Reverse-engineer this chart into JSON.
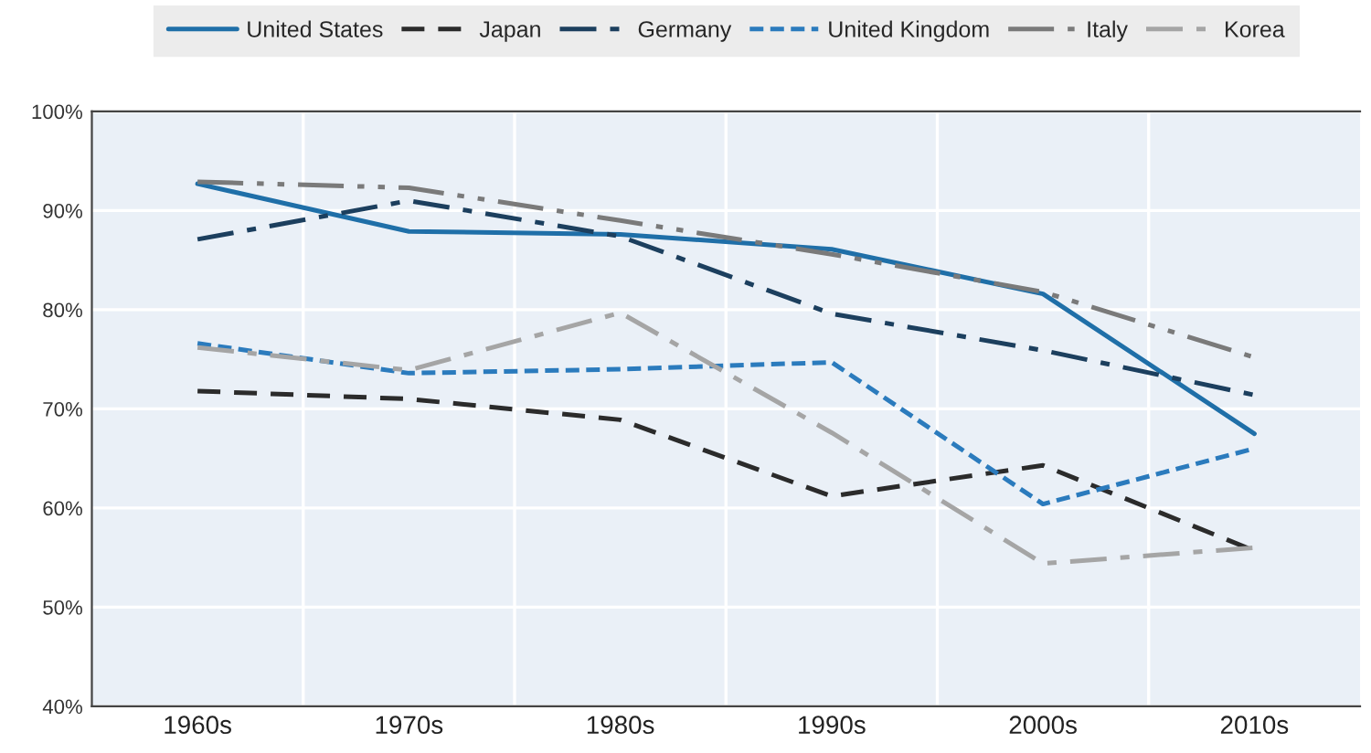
{
  "chart_data": {
    "type": "line",
    "categories": [
      "1960s",
      "1970s",
      "1980s",
      "1990s",
      "2000s",
      "2010s"
    ],
    "series": [
      {
        "name": "United States",
        "color": "#1f6fa8",
        "line_style": "solid",
        "values": [
          92.7,
          87.9,
          87.6,
          86.1,
          81.6,
          67.5
        ]
      },
      {
        "name": "Japan",
        "color": "#2b2b2b",
        "line_style": "dashed",
        "values": [
          71.8,
          71.0,
          68.9,
          61.2,
          64.3,
          55.7
        ]
      },
      {
        "name": "Germany",
        "color": "#1c3f5e",
        "line_style": "dashdot",
        "values": [
          87.1,
          91.0,
          87.4,
          79.6,
          75.9,
          71.4
        ]
      },
      {
        "name": "United Kingdom",
        "color": "#2b7bbd",
        "line_style": "shortdash",
        "values": [
          76.6,
          73.6,
          74.0,
          74.7,
          60.4,
          66.0
        ]
      },
      {
        "name": "Italy",
        "color": "#7a7a7a",
        "line_style": "dashdotdot",
        "values": [
          92.9,
          92.3,
          89.0,
          85.6,
          81.8,
          75.2
        ]
      },
      {
        "name": "Korea",
        "color": "#a5a5a5",
        "line_style": "dashdot",
        "values": [
          76.2,
          73.9,
          79.7,
          67.6,
          54.4,
          56.0
        ]
      }
    ],
    "ylim": [
      40,
      100
    ],
    "yticks": [
      {
        "value": 40,
        "label": "40%"
      },
      {
        "value": 50,
        "label": "50%"
      },
      {
        "value": 60,
        "label": "60%"
      },
      {
        "value": 70,
        "label": "70%"
      },
      {
        "value": 80,
        "label": "80%"
      },
      {
        "value": 90,
        "label": "90%"
      },
      {
        "value": 100,
        "label": "100%"
      }
    ],
    "grid": true,
    "legend": "top",
    "marker": "none"
  }
}
